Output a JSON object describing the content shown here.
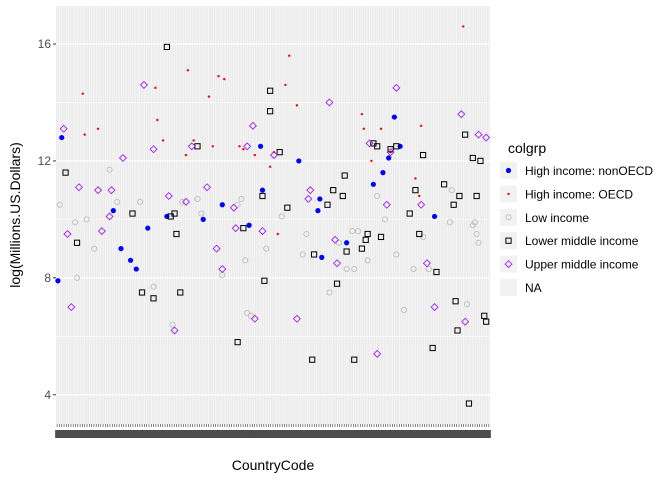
{
  "chart_data": {
    "type": "scatter",
    "xlabel": "CountryCode",
    "ylabel": "log(Millions.US.Dollars)",
    "ylim": [
      3,
      17.3
    ],
    "y_ticks": [
      4,
      8,
      12,
      16
    ],
    "x_count": 189,
    "legend": {
      "title": "colgrp",
      "position": "right",
      "entries": [
        "High income: nonOECD",
        "High income: OECD",
        "Low income",
        "Lower middle income",
        "Upper middle income",
        "NA"
      ]
    },
    "colors": {
      "High income: nonOECD": "#0000ff",
      "High income: OECD": "#ff0000",
      "Low income": "#bebebe",
      "Lower middle income": "#000000",
      "Upper middle income": "#a020f0",
      "panel_bg": "#ebebeb",
      "grid": "#ffffff"
    },
    "shapes": {
      "High income: nonOECD": "filled-circle",
      "High income: OECD": "small-dot",
      "Low income": "open-circle",
      "Lower middle income": "open-square",
      "Upper middle income": "open-diamond"
    },
    "series": [
      {
        "name": "High income: nonOECD",
        "points": [
          [
            1,
            7.9
          ],
          [
            3,
            12.8
          ],
          [
            30,
            10.3
          ],
          [
            34,
            9.0
          ],
          [
            39,
            8.6
          ],
          [
            42,
            8.3
          ],
          [
            48,
            9.7
          ],
          [
            58,
            10.1
          ],
          [
            77,
            10.0
          ],
          [
            87,
            10.5
          ],
          [
            101,
            9.8
          ],
          [
            107,
            12.5
          ],
          [
            108,
            11.0
          ],
          [
            127,
            12.0
          ],
          [
            137,
            10.3
          ],
          [
            138,
            10.7
          ],
          [
            139,
            8.7
          ],
          [
            152,
            9.2
          ],
          [
            166,
            11.2
          ],
          [
            171,
            11.6
          ],
          [
            174,
            12.1
          ],
          [
            177,
            13.5
          ],
          [
            180,
            12.5
          ],
          [
            198,
            10.1
          ]
        ]
      },
      {
        "name": "High income: OECD",
        "points": [
          [
            14,
            14.3
          ],
          [
            15,
            12.9
          ],
          [
            22,
            13.1
          ],
          [
            52,
            14.5
          ],
          [
            53,
            13.4
          ],
          [
            56,
            12.7
          ],
          [
            68,
            12.2
          ],
          [
            69,
            15.1
          ],
          [
            72,
            12.7
          ],
          [
            80,
            14.2
          ],
          [
            82,
            12.5
          ],
          [
            85,
            14.9
          ],
          [
            88,
            14.8
          ],
          [
            96,
            12.5
          ],
          [
            98,
            12.4
          ],
          [
            104,
            12.2
          ],
          [
            112,
            11.8
          ],
          [
            114,
            12.3
          ],
          [
            116,
            9.5
          ],
          [
            120,
            14.6
          ],
          [
            122,
            15.6
          ],
          [
            126,
            13.9
          ],
          [
            160,
            13.6
          ],
          [
            161,
            13.1
          ],
          [
            165,
            12.0
          ],
          [
            170,
            13.1
          ],
          [
            175,
            12.3
          ],
          [
            188,
            11.4
          ],
          [
            190,
            10.8
          ],
          [
            191,
            13.2
          ],
          [
            213,
            16.6
          ]
        ]
      },
      {
        "name": "Low income",
        "points": [
          [
            2,
            10.5
          ],
          [
            10,
            9.9
          ],
          [
            11,
            8.0
          ],
          [
            16,
            10.0
          ],
          [
            20,
            9.0
          ],
          [
            28,
            11.7
          ],
          [
            32,
            10.6
          ],
          [
            44,
            10.6
          ],
          [
            51,
            7.7
          ],
          [
            61,
            6.4
          ],
          [
            66,
            10.6
          ],
          [
            74,
            10.7
          ],
          [
            76,
            10.2
          ],
          [
            87,
            8.1
          ],
          [
            95,
            10.5
          ],
          [
            97,
            10.7
          ],
          [
            99,
            8.6
          ],
          [
            100,
            6.8
          ],
          [
            102,
            6.7
          ],
          [
            110,
            9.0
          ],
          [
            118,
            10.1
          ],
          [
            129,
            8.8
          ],
          [
            131,
            9.5
          ],
          [
            143,
            7.5
          ],
          [
            148,
            9.2
          ],
          [
            152,
            8.3
          ],
          [
            155,
            9.6
          ],
          [
            156,
            8.3
          ],
          [
            158,
            9.6
          ],
          [
            163,
            8.6
          ],
          [
            168,
            10.8
          ],
          [
            172,
            10.0
          ],
          [
            178,
            8.8
          ],
          [
            182,
            6.9
          ],
          [
            187,
            8.3
          ],
          [
            192,
            9.4
          ],
          [
            195,
            8.3
          ],
          [
            206,
            9.9
          ],
          [
            207,
            11.0
          ],
          [
            215,
            7.1
          ],
          [
            218,
            9.8
          ],
          [
            219,
            9.9
          ],
          [
            220,
            9.5
          ],
          [
            221,
            9.2
          ]
        ]
      },
      {
        "name": "Lower middle income",
        "points": [
          [
            5,
            11.6
          ],
          [
            11,
            9.2
          ],
          [
            40,
            10.2
          ],
          [
            45,
            7.5
          ],
          [
            51,
            7.3
          ],
          [
            58,
            15.9
          ],
          [
            60,
            10.1
          ],
          [
            62,
            10.2
          ],
          [
            63,
            9.5
          ],
          [
            65,
            7.5
          ],
          [
            74,
            12.5
          ],
          [
            95,
            5.8
          ],
          [
            98,
            9.7
          ],
          [
            108,
            10.8
          ],
          [
            109,
            7.9
          ],
          [
            112,
            14.4
          ],
          [
            112,
            13.7
          ],
          [
            117,
            12.3
          ],
          [
            121,
            10.4
          ],
          [
            134,
            5.2
          ],
          [
            135,
            8.8
          ],
          [
            142,
            10.5
          ],
          [
            145,
            11.0
          ],
          [
            147,
            7.8
          ],
          [
            150,
            10.8
          ],
          [
            151,
            11.5
          ],
          [
            152,
            8.9
          ],
          [
            156,
            5.2
          ],
          [
            160,
            9.0
          ],
          [
            162,
            9.3
          ],
          [
            163,
            9.5
          ],
          [
            166,
            12.6
          ],
          [
            168,
            12.5
          ],
          [
            170,
            9.4
          ],
          [
            175,
            12.4
          ],
          [
            178,
            12.5
          ],
          [
            185,
            10.2
          ],
          [
            188,
            11.0
          ],
          [
            190,
            9.5
          ],
          [
            192,
            12.2
          ],
          [
            197,
            5.6
          ],
          [
            199,
            8.2
          ],
          [
            203,
            11.2
          ],
          [
            208,
            10.5
          ],
          [
            209,
            7.2
          ],
          [
            210,
            6.2
          ],
          [
            211,
            10.8
          ],
          [
            214,
            12.9
          ],
          [
            216,
            3.7
          ],
          [
            218,
            12.1
          ],
          [
            220,
            10.8
          ],
          [
            222,
            12.0
          ],
          [
            224,
            6.7
          ],
          [
            225,
            6.5
          ]
        ]
      },
      {
        "name": "Upper middle income",
        "points": [
          [
            4,
            13.1
          ],
          [
            6,
            9.5
          ],
          [
            8,
            7.0
          ],
          [
            12,
            11.1
          ],
          [
            22,
            11.0
          ],
          [
            24,
            9.6
          ],
          [
            28,
            10.1
          ],
          [
            29,
            11.0
          ],
          [
            35,
            12.1
          ],
          [
            46,
            14.6
          ],
          [
            51,
            12.4
          ],
          [
            59,
            10.8
          ],
          [
            62,
            6.2
          ],
          [
            68,
            10.6
          ],
          [
            71,
            12.5
          ],
          [
            79,
            11.1
          ],
          [
            84,
            9.0
          ],
          [
            87,
            8.3
          ],
          [
            93,
            10.4
          ],
          [
            94,
            9.7
          ],
          [
            100,
            12.5
          ],
          [
            103,
            13.2
          ],
          [
            104,
            6.6
          ],
          [
            108,
            9.6
          ],
          [
            114,
            12.2
          ],
          [
            126,
            6.6
          ],
          [
            132,
            10.7
          ],
          [
            133,
            11.0
          ],
          [
            143,
            14.0
          ],
          [
            146,
            9.3
          ],
          [
            147,
            8.5
          ],
          [
            164,
            12.6
          ],
          [
            168,
            5.4
          ],
          [
            173,
            10.5
          ],
          [
            175,
            12.3
          ],
          [
            178,
            14.5
          ],
          [
            191,
            10.5
          ],
          [
            194,
            8.5
          ],
          [
            198,
            7.0
          ],
          [
            212,
            13.6
          ],
          [
            214,
            6.5
          ],
          [
            221,
            12.9
          ],
          [
            225,
            12.8
          ]
        ]
      }
    ]
  }
}
